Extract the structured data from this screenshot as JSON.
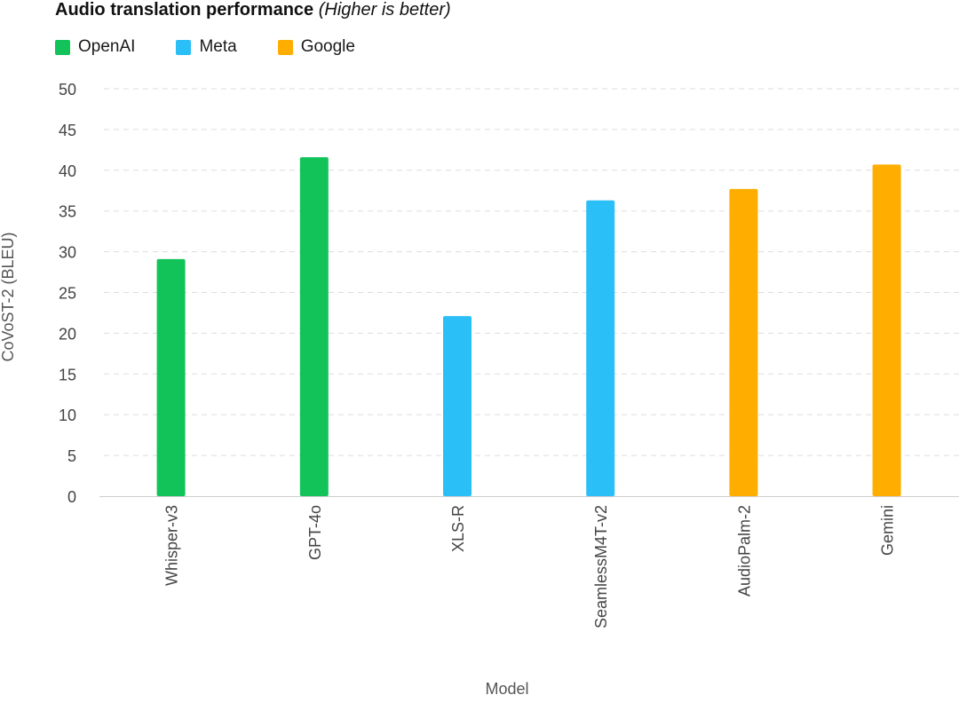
{
  "chart_data": {
    "type": "bar",
    "title": "Audio translation performance",
    "subtitle": "(Higher is better)",
    "xlabel": "Model",
    "ylabel": "CoVoST-2 (BLEU)",
    "ylim": [
      0,
      50
    ],
    "yticks": [
      0,
      5,
      10,
      15,
      20,
      25,
      30,
      35,
      40,
      45,
      50
    ],
    "grid": true,
    "legend_position": "top-left",
    "legend": [
      {
        "name": "OpenAI",
        "color": "#12C35A"
      },
      {
        "name": "Meta",
        "color": "#2BBFF7"
      },
      {
        "name": "Google",
        "color": "#FFAE00"
      }
    ],
    "categories": [
      "Whisper-v3",
      "GPT-4o",
      "XLS-R",
      "SeamlessM4T-v2",
      "AudioPalm-2",
      "Gemini"
    ],
    "values": [
      29.1,
      41.6,
      22.1,
      36.3,
      37.7,
      40.7
    ],
    "groups": [
      "OpenAI",
      "OpenAI",
      "Meta",
      "Meta",
      "Google",
      "Google"
    ]
  }
}
